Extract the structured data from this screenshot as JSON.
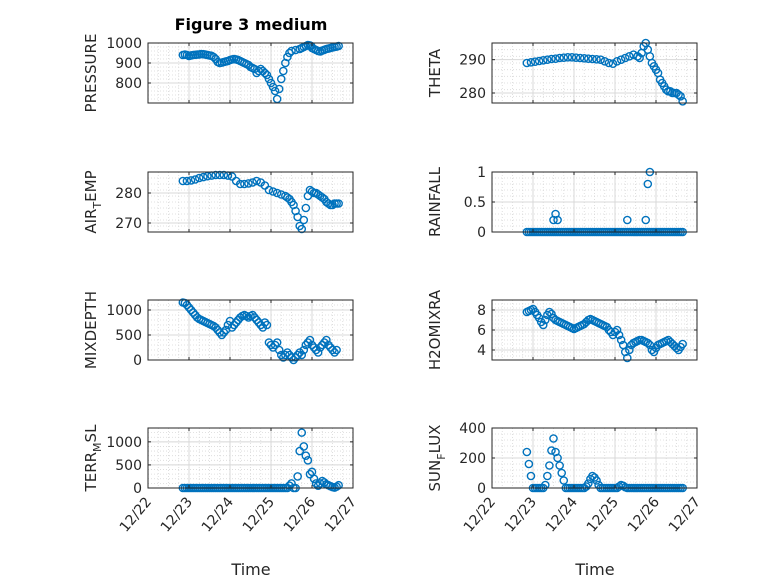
{
  "figure": {
    "title": "Figure 3 medium",
    "xlabel": "Time",
    "x_ticks": [
      "12/22",
      "12/23",
      "12/24",
      "12/25",
      "12/26",
      "12/27"
    ],
    "marker_color": "#0072BD",
    "grid_color": "#d8d8d8",
    "axis_color": "#262626"
  },
  "chart_data": [
    {
      "type": "scatter",
      "ylabel": "PRESSURE",
      "ylim": [
        700,
        1000
      ],
      "yticks": [
        800,
        900,
        1000
      ],
      "x": [
        0.85,
        0.9,
        0.95,
        1.0,
        1.05,
        1.1,
        1.15,
        1.2,
        1.25,
        1.3,
        1.35,
        1.4,
        1.45,
        1.5,
        1.55,
        1.6,
        1.65,
        1.7,
        1.75,
        1.8,
        1.85,
        1.9,
        1.95,
        2.0,
        2.05,
        2.1,
        2.15,
        2.2,
        2.25,
        2.3,
        2.35,
        2.4,
        2.45,
        2.5,
        2.55,
        2.6,
        2.65,
        2.7,
        2.75,
        2.8,
        2.85,
        2.9,
        2.95,
        3.0,
        3.05,
        3.1,
        3.15,
        3.2,
        3.25,
        3.3,
        3.35,
        3.4,
        3.45,
        3.5,
        3.6,
        3.7,
        3.75,
        3.8,
        3.85,
        3.9,
        3.95,
        3.98,
        4.0,
        4.05,
        4.1,
        4.15,
        4.2,
        4.25,
        4.3,
        4.35,
        4.4,
        4.45,
        4.5,
        4.55,
        4.6,
        4.65
      ],
      "y": [
        940,
        942,
        940,
        935,
        938,
        940,
        941,
        942,
        943,
        945,
        944,
        942,
        940,
        938,
        936,
        930,
        920,
        905,
        900,
        902,
        905,
        908,
        910,
        915,
        918,
        920,
        918,
        915,
        910,
        905,
        900,
        895,
        890,
        880,
        875,
        870,
        850,
        860,
        870,
        860,
        850,
        840,
        820,
        800,
        780,
        760,
        720,
        770,
        820,
        860,
        900,
        930,
        950,
        960,
        965,
        970,
        975,
        980,
        985,
        990,
        988,
        985,
        975,
        970,
        965,
        960,
        958,
        962,
        966,
        970,
        972,
        975,
        978,
        980,
        982,
        985
      ],
      "notes": ""
    },
    {
      "type": "scatter",
      "ylabel": "THETA",
      "ylim": [
        277,
        295
      ],
      "yticks": [
        280,
        290
      ],
      "x": [
        0.85,
        0.95,
        1.05,
        1.15,
        1.25,
        1.35,
        1.45,
        1.55,
        1.65,
        1.75,
        1.85,
        1.95,
        2.05,
        2.15,
        2.25,
        2.35,
        2.45,
        2.55,
        2.65,
        2.75,
        2.85,
        2.95,
        3.05,
        3.15,
        3.25,
        3.35,
        3.45,
        3.55,
        3.6,
        3.65,
        3.7,
        3.75,
        3.8,
        3.85,
        3.9,
        3.95,
        4.0,
        4.05,
        4.1,
        4.15,
        4.2,
        4.25,
        4.3,
        4.35,
        4.4,
        4.45,
        4.5,
        4.55,
        4.6,
        4.65
      ],
      "y": [
        289,
        289.2,
        289.4,
        289.6,
        289.8,
        290,
        290.2,
        290.3,
        290.5,
        290.6,
        290.7,
        290.7,
        290.6,
        290.5,
        290.4,
        290.3,
        290.2,
        290.1,
        290,
        289.5,
        289,
        288.8,
        289.5,
        290,
        290.5,
        291,
        291.5,
        291,
        290.5,
        292,
        294,
        295,
        293,
        291,
        289,
        288,
        287,
        286,
        284,
        283,
        282,
        281,
        280.5,
        280.5,
        280,
        280,
        280,
        279.5,
        279,
        277.5
      ]
    },
    {
      "type": "scatter",
      "ylabel": "AIR_TEMP",
      "ylabel_main": "AIR",
      "ylabel_sub": "T",
      "ylabel_rest": "EMP",
      "ylim": [
        267,
        287
      ],
      "yticks": [
        270,
        280
      ],
      "x": [
        0.85,
        0.95,
        1.05,
        1.15,
        1.25,
        1.35,
        1.45,
        1.55,
        1.65,
        1.75,
        1.85,
        1.95,
        2.05,
        2.15,
        2.25,
        2.35,
        2.45,
        2.55,
        2.65,
        2.75,
        2.85,
        2.95,
        3.05,
        3.15,
        3.25,
        3.35,
        3.4,
        3.45,
        3.5,
        3.55,
        3.6,
        3.65,
        3.7,
        3.75,
        3.8,
        3.85,
        3.9,
        3.95,
        4.0,
        4.05,
        4.1,
        4.15,
        4.2,
        4.25,
        4.3,
        4.35,
        4.4,
        4.45,
        4.5,
        4.55,
        4.6,
        4.65
      ],
      "y": [
        284,
        284,
        284.2,
        284.5,
        285,
        285.3,
        285.6,
        285.8,
        286,
        286,
        286,
        285.8,
        285.5,
        284,
        283,
        283,
        283.2,
        283.5,
        284,
        283.5,
        282.5,
        281,
        280.5,
        280,
        279.5,
        279,
        278.5,
        278,
        277,
        276,
        274,
        272,
        269,
        268,
        271,
        275,
        279,
        281,
        280.5,
        280,
        280,
        279.5,
        279,
        278.5,
        278,
        277,
        276.5,
        276,
        276,
        276.5,
        276.5,
        276.5
      ]
    },
    {
      "type": "scatter",
      "ylabel": "RAINFALL",
      "ylim": [
        0,
        1
      ],
      "yticks": [
        0,
        0.5,
        1
      ],
      "ytick_labels": [
        "0",
        "0.5",
        "1"
      ],
      "x": [
        0.85,
        0.9,
        0.95,
        1.0,
        1.05,
        1.1,
        1.15,
        1.2,
        1.25,
        1.3,
        1.35,
        1.4,
        1.45,
        1.5,
        1.55,
        1.6,
        1.65,
        1.7,
        1.75,
        1.8,
        1.85,
        1.9,
        1.95,
        2.0,
        2.05,
        2.1,
        2.15,
        2.2,
        2.25,
        2.3,
        2.35,
        2.4,
        2.45,
        2.5,
        2.55,
        2.6,
        2.65,
        2.7,
        2.75,
        2.8,
        2.85,
        2.9,
        2.95,
        3.0,
        3.05,
        3.1,
        3.15,
        3.2,
        3.25,
        3.3,
        3.35,
        3.4,
        3.45,
        3.5,
        3.55,
        3.6,
        3.65,
        3.7,
        3.75,
        3.8,
        3.85,
        3.9,
        3.95,
        4.0,
        4.05,
        4.1,
        4.15,
        4.2,
        4.25,
        4.3,
        4.35,
        4.4,
        4.45,
        4.5,
        4.55,
        4.6,
        4.65,
        1.5,
        1.55,
        1.6,
        3.3,
        3.75,
        3.8,
        3.85
      ],
      "y": [
        0,
        0,
        0,
        0,
        0,
        0,
        0,
        0,
        0,
        0,
        0,
        0,
        0,
        0,
        0,
        0,
        0,
        0,
        0,
        0,
        0,
        0,
        0,
        0,
        0,
        0,
        0,
        0,
        0,
        0,
        0,
        0,
        0,
        0,
        0,
        0,
        0,
        0,
        0,
        0,
        0,
        0,
        0,
        0,
        0,
        0,
        0,
        0,
        0,
        0,
        0,
        0,
        0,
        0,
        0,
        0,
        0,
        0,
        0,
        0,
        0,
        0,
        0,
        0,
        0,
        0,
        0,
        0,
        0,
        0,
        0,
        0,
        0,
        0,
        0,
        0,
        0,
        0.2,
        0.3,
        0.2,
        0.2,
        0.2,
        0.8,
        1.0
      ]
    },
    {
      "type": "scatter",
      "ylabel": "MIXDEPTH",
      "ylim": [
        0,
        1200
      ],
      "yticks": [
        0,
        500,
        1000
      ],
      "x": [
        0.85,
        0.9,
        0.95,
        1.0,
        1.05,
        1.1,
        1.15,
        1.2,
        1.25,
        1.3,
        1.35,
        1.4,
        1.45,
        1.5,
        1.55,
        1.6,
        1.65,
        1.7,
        1.75,
        1.8,
        1.85,
        1.9,
        1.95,
        2.0,
        2.05,
        2.1,
        2.15,
        2.2,
        2.25,
        2.3,
        2.35,
        2.4,
        2.45,
        2.5,
        2.55,
        2.6,
        2.65,
        2.7,
        2.75,
        2.8,
        2.85,
        2.9,
        2.95,
        3.0,
        3.05,
        3.1,
        3.15,
        3.2,
        3.25,
        3.3,
        3.35,
        3.4,
        3.45,
        3.5,
        3.55,
        3.6,
        3.65,
        3.7,
        3.75,
        3.8,
        3.85,
        3.9,
        3.95,
        4.0,
        4.05,
        4.1,
        4.15,
        4.2,
        4.25,
        4.3,
        4.35,
        4.4,
        4.45,
        4.5,
        4.55,
        4.6
      ],
      "y": [
        1150,
        1140,
        1100,
        1050,
        1000,
        950,
        900,
        850,
        820,
        800,
        780,
        760,
        740,
        720,
        700,
        680,
        650,
        600,
        550,
        500,
        550,
        600,
        700,
        780,
        650,
        700,
        750,
        800,
        850,
        880,
        900,
        880,
        850,
        880,
        900,
        850,
        800,
        750,
        700,
        650,
        750,
        700,
        350,
        300,
        250,
        300,
        350,
        200,
        100,
        50,
        100,
        150,
        100,
        50,
        0,
        50,
        100,
        150,
        100,
        200,
        300,
        350,
        400,
        300,
        250,
        200,
        150,
        250,
        300,
        350,
        400,
        300,
        250,
        200,
        150,
        200
      ]
    },
    {
      "type": "scatter",
      "ylabel": "H2OMIXRA",
      "ylim": [
        3,
        9
      ],
      "yticks": [
        4,
        6,
        8
      ],
      "x": [
        0.85,
        0.9,
        0.95,
        1.0,
        1.05,
        1.1,
        1.15,
        1.2,
        1.25,
        1.3,
        1.35,
        1.4,
        1.45,
        1.5,
        1.55,
        1.6,
        1.65,
        1.7,
        1.75,
        1.8,
        1.85,
        1.9,
        1.95,
        2.0,
        2.05,
        2.1,
        2.15,
        2.2,
        2.25,
        2.3,
        2.35,
        2.4,
        2.45,
        2.5,
        2.55,
        2.6,
        2.65,
        2.7,
        2.75,
        2.8,
        2.85,
        2.9,
        2.95,
        3.0,
        3.05,
        3.1,
        3.15,
        3.2,
        3.25,
        3.3,
        3.35,
        3.4,
        3.45,
        3.5,
        3.55,
        3.6,
        3.65,
        3.7,
        3.75,
        3.8,
        3.85,
        3.9,
        3.95,
        4.0,
        4.05,
        4.1,
        4.15,
        4.2,
        4.25,
        4.3,
        4.35,
        4.4,
        4.45,
        4.5,
        4.55,
        4.6,
        4.65
      ],
      "y": [
        7.8,
        7.9,
        8.0,
        8.1,
        7.8,
        7.5,
        7.2,
        6.8,
        6.5,
        7.0,
        7.5,
        7.8,
        7.6,
        7.2,
        7.0,
        6.9,
        6.8,
        6.7,
        6.6,
        6.5,
        6.4,
        6.3,
        6.2,
        6.1,
        6.2,
        6.3,
        6.4,
        6.5,
        6.6,
        6.8,
        7.0,
        7.1,
        7.0,
        6.9,
        6.8,
        6.7,
        6.6,
        6.5,
        6.4,
        6.3,
        6.0,
        5.8,
        5.5,
        5.8,
        6.0,
        5.5,
        5.0,
        4.5,
        3.8,
        3.2,
        4.0,
        4.5,
        4.7,
        4.8,
        4.9,
        5.0,
        5.0,
        4.9,
        4.8,
        4.7,
        4.5,
        4.0,
        3.8,
        4.2,
        4.5,
        4.6,
        4.7,
        4.8,
        4.9,
        5.0,
        4.8,
        4.6,
        4.4,
        4.2,
        4.0,
        4.3,
        4.6
      ]
    },
    {
      "type": "scatter",
      "ylabel": "TERR_MSL",
      "ylabel_main": "TERR",
      "ylabel_sub": "M",
      "ylabel_rest": "SL",
      "ylim": [
        0,
        1300
      ],
      "yticks": [
        0,
        500,
        1000
      ],
      "x": [
        0.85,
        0.9,
        0.95,
        1.0,
        1.05,
        1.1,
        1.15,
        1.2,
        1.25,
        1.3,
        1.35,
        1.4,
        1.45,
        1.5,
        1.55,
        1.6,
        1.65,
        1.7,
        1.75,
        1.8,
        1.85,
        1.9,
        1.95,
        2.0,
        2.05,
        2.1,
        2.15,
        2.2,
        2.25,
        2.3,
        2.35,
        2.4,
        2.45,
        2.5,
        2.55,
        2.6,
        2.65,
        2.7,
        2.75,
        2.8,
        2.85,
        2.9,
        2.95,
        3.0,
        3.05,
        3.1,
        3.15,
        3.2,
        3.25,
        3.3,
        3.35,
        3.4,
        3.45,
        3.5,
        3.55,
        3.6,
        3.65,
        3.7,
        3.75,
        3.8,
        3.85,
        3.9,
        3.95,
        4.0,
        4.05,
        4.1,
        4.15,
        4.2,
        4.25,
        4.3,
        4.35,
        4.4,
        4.45,
        4.5,
        4.55,
        4.6,
        4.65
      ],
      "y": [
        0,
        0,
        0,
        0,
        0,
        0,
        0,
        0,
        0,
        0,
        0,
        0,
        0,
        0,
        0,
        0,
        0,
        0,
        0,
        0,
        0,
        0,
        0,
        0,
        0,
        0,
        0,
        0,
        0,
        0,
        0,
        0,
        0,
        0,
        0,
        0,
        0,
        0,
        0,
        0,
        0,
        0,
        0,
        0,
        0,
        0,
        0,
        0,
        0,
        0,
        0,
        0,
        50,
        100,
        0,
        0,
        250,
        800,
        1200,
        900,
        700,
        600,
        300,
        350,
        200,
        100,
        50,
        100,
        150,
        120,
        80,
        60,
        40,
        20,
        10,
        30,
        60
      ]
    },
    {
      "type": "scatter",
      "ylabel": "SUN_FLUX",
      "ylabel_main": "SUN",
      "ylabel_sub": "F",
      "ylabel_rest": "LUX",
      "ylim": [
        0,
        400
      ],
      "yticks": [
        0,
        200,
        400
      ],
      "x": [
        0.85,
        0.9,
        0.95,
        1.0,
        1.05,
        1.1,
        1.15,
        1.2,
        1.25,
        1.3,
        1.35,
        1.4,
        1.45,
        1.5,
        1.55,
        1.6,
        1.65,
        1.7,
        1.75,
        1.8,
        1.85,
        1.9,
        1.95,
        2.0,
        2.05,
        2.1,
        2.15,
        2.2,
        2.25,
        2.3,
        2.35,
        2.4,
        2.45,
        2.5,
        2.55,
        2.6,
        2.65,
        2.7,
        2.75,
        2.8,
        2.85,
        2.9,
        2.95,
        3.0,
        3.05,
        3.1,
        3.15,
        3.2,
        3.25,
        3.3,
        3.35,
        3.4,
        3.45,
        3.5,
        3.55,
        3.6,
        3.65,
        3.7,
        3.75,
        3.8,
        3.85,
        3.9,
        3.95,
        4.0,
        4.05,
        4.1,
        4.15,
        4.2,
        4.25,
        4.3,
        4.35,
        4.4,
        4.45,
        4.5,
        4.55,
        4.6,
        4.65
      ],
      "y": [
        240,
        160,
        80,
        0,
        0,
        0,
        0,
        0,
        0,
        20,
        80,
        150,
        250,
        330,
        240,
        200,
        150,
        100,
        50,
        0,
        0,
        0,
        0,
        0,
        0,
        0,
        0,
        0,
        0,
        10,
        30,
        60,
        80,
        70,
        50,
        20,
        0,
        0,
        0,
        0,
        0,
        0,
        0,
        0,
        0,
        10,
        20,
        15,
        5,
        0,
        0,
        0,
        0,
        0,
        0,
        0,
        0,
        0,
        0,
        0,
        0,
        0,
        0,
        0,
        0,
        0,
        0,
        0,
        0,
        0,
        0,
        0,
        0,
        0,
        0,
        0,
        0
      ]
    }
  ]
}
